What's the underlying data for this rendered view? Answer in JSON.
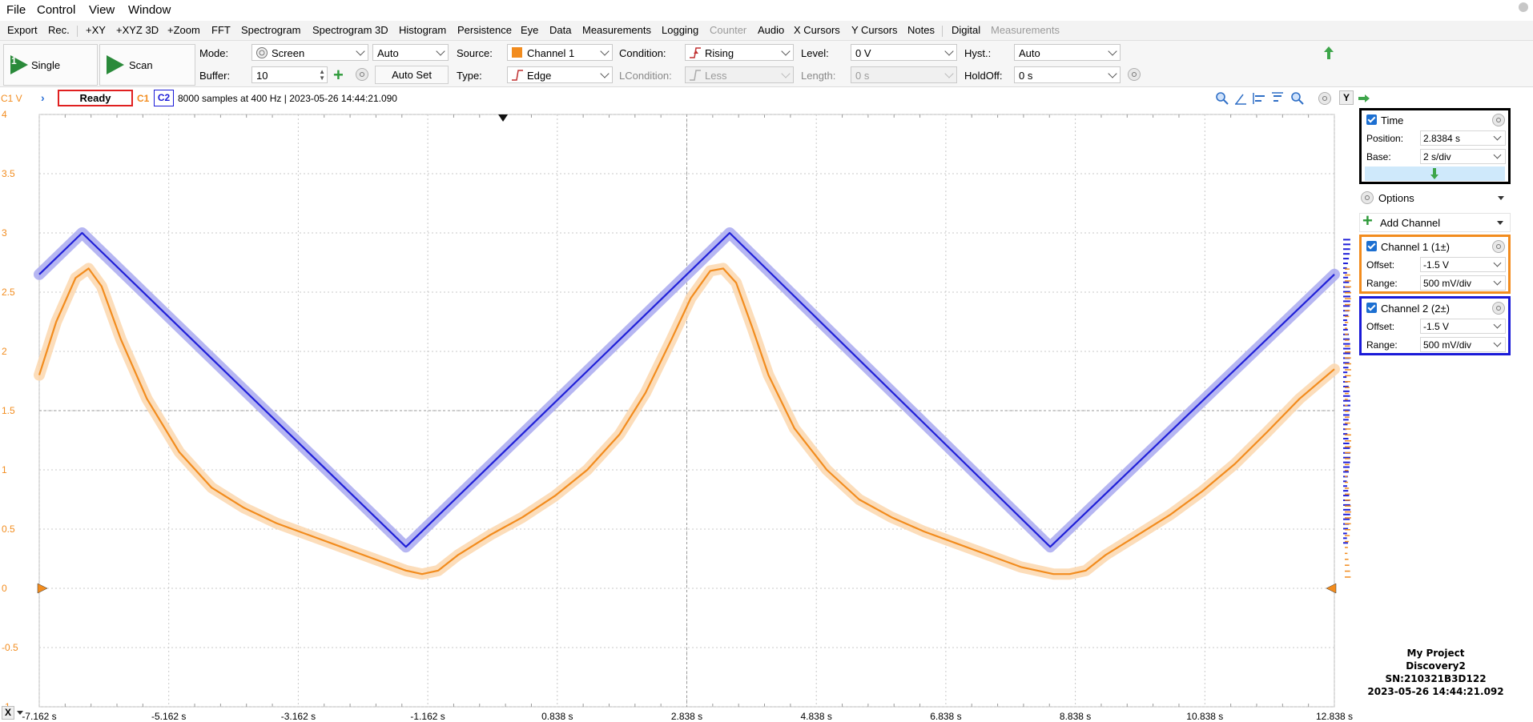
{
  "menu": [
    "File",
    "Control",
    "View",
    "Window"
  ],
  "tabs": [
    "Export",
    "Rec.",
    "+XY",
    "+XYZ 3D",
    "+Zoom",
    "FFT",
    "Spectrogram",
    "Spectrogram 3D",
    "Histogram",
    "Persistence",
    "Eye",
    "Data",
    "Measurements",
    "Logging",
    "Counter",
    "Audio",
    "X Cursors",
    "Y Cursors",
    "Notes",
    "Digital",
    "Measurements"
  ],
  "toolbar": {
    "single_label": "Single",
    "single_badge": "1",
    "scan_label": "Scan",
    "mode_label": "Mode:",
    "mode_value": "Screen",
    "auto_value": "Auto",
    "buffer_label": "Buffer:",
    "buffer_value": "10",
    "autoset_label": "Auto Set",
    "source_label": "Source:",
    "source_value": "Channel 1",
    "type_label": "Type:",
    "type_value": "Edge",
    "condition_label": "Condition:",
    "condition_value": "Rising",
    "lcondition_label": "LCondition:",
    "lcondition_value": "Less",
    "level_label": "Level:",
    "level_value": "0 V",
    "length_label": "Length:",
    "length_value": "0 s",
    "hyst_label": "Hyst.:",
    "hyst_value": "Auto",
    "holdoff_label": "HoldOff:",
    "holdoff_value": "0 s"
  },
  "status": {
    "axis_unit": "C1 V",
    "state": "Ready",
    "c1": "C1",
    "c2": "C2",
    "info": "8000 samples at 400 Hz | 2023-05-26 14:44:21.090"
  },
  "panel": {
    "time_title": "Time",
    "position_label": "Position:",
    "position_value": "2.8384 s",
    "base_label": "Base:",
    "base_value": "2 s/div",
    "options_label": "Options",
    "add_channel_label": "Add Channel",
    "ch1_title": "Channel 1 (1±)",
    "ch1_offset_label": "Offset:",
    "ch1_offset_value": "-1.5 V",
    "ch1_range_label": "Range:",
    "ch1_range_value": "500 mV/div",
    "ch2_title": "Channel 2 (2±)",
    "ch2_offset_label": "Offset:",
    "ch2_offset_value": "-1.5 V",
    "ch2_range_label": "Range:",
    "ch2_range_value": "500 mV/div",
    "y_label": "Y",
    "x_label": "X"
  },
  "device": {
    "line1": "My Project",
    "line2": "Discovery2",
    "line3": "SN:210321B3D122",
    "line4": "2023-05-26 14:44:21.092"
  },
  "colors": {
    "channel1": "#f28c1e",
    "channel1_halo": "#fbd7ae",
    "channel2": "#2020d8",
    "channel2_halo": "#a9a9f0",
    "time_box": "#000000",
    "ch1_box": "#f28c1e",
    "ch2_box": "#1a1ad8"
  },
  "chart_data": {
    "type": "line",
    "xlim": [
      -7.162,
      12.838
    ],
    "ylim": [
      -1,
      4
    ],
    "x_ticks": [
      "-7.162 s",
      "-5.162 s",
      "-3.162 s",
      "-1.162 s",
      "0.838 s",
      "2.838 s",
      "4.838 s",
      "6.838 s",
      "8.838 s",
      "10.838 s",
      "12.838 s"
    ],
    "y_ticks": [
      "4",
      "3.5",
      "3",
      "2.5",
      "2",
      "1.5",
      "1",
      "0.5",
      "0",
      "-0.5",
      "-1"
    ],
    "grid": true,
    "series": [
      {
        "name": "C1",
        "x": [
          -7.162,
          -6.9,
          -6.6,
          -6.4,
          -6.2,
          -5.9,
          -5.5,
          -5.0,
          -4.5,
          -4.0,
          -3.5,
          -3.0,
          -2.5,
          -2.0,
          -1.5,
          -1.25,
          -1.0,
          -0.7,
          -0.2,
          0.3,
          0.8,
          1.3,
          1.8,
          2.2,
          2.6,
          2.9,
          3.2,
          3.4,
          3.6,
          3.85,
          4.1,
          4.5,
          5.0,
          5.5,
          6.0,
          6.5,
          7.0,
          7.5,
          8.0,
          8.5,
          8.75,
          9.0,
          9.3,
          9.8,
          10.3,
          10.8,
          11.3,
          11.8,
          12.3,
          12.838
        ],
        "y": [
          1.8,
          2.25,
          2.62,
          2.7,
          2.55,
          2.1,
          1.6,
          1.15,
          0.85,
          0.68,
          0.55,
          0.45,
          0.35,
          0.25,
          0.15,
          0.12,
          0.15,
          0.28,
          0.45,
          0.6,
          0.78,
          1.0,
          1.3,
          1.65,
          2.1,
          2.45,
          2.68,
          2.7,
          2.58,
          2.2,
          1.8,
          1.35,
          1.0,
          0.75,
          0.6,
          0.48,
          0.38,
          0.28,
          0.18,
          0.12,
          0.12,
          0.15,
          0.28,
          0.45,
          0.62,
          0.82,
          1.05,
          1.32,
          1.6,
          1.85
        ]
      },
      {
        "name": "C2",
        "x": [
          -7.162,
          -6.5,
          -1.5,
          3.5,
          8.45,
          12.838
        ],
        "y": [
          2.65,
          3.0,
          0.35,
          3.0,
          0.35,
          2.65
        ]
      }
    ]
  }
}
